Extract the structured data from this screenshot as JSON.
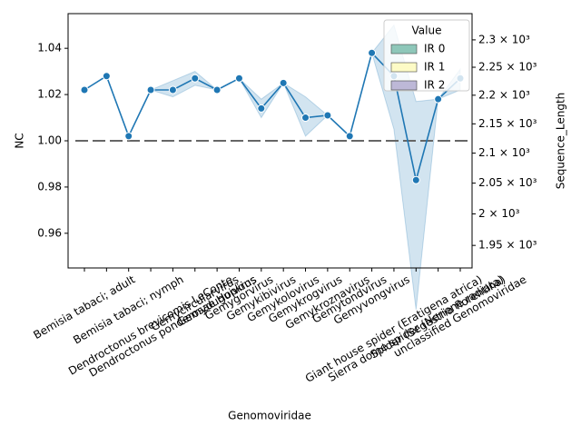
{
  "chart_data": {
    "type": "line",
    "xlabel": "Genomoviridae",
    "ylabel": "NC",
    "y2label": "Sequence_Length",
    "categories": [
      "Bemisia tabaci; adult",
      null,
      "Bemisia tabaci; nymph",
      "Dendroctonus brevicomis LeConte",
      "Dendroctonus ponderosae Hopkins",
      "Gemycircularvirus",
      "Gemyduguivirus",
      "Gemygorvirus",
      "Gemykibivirus",
      "Gemykolovirus",
      "Gemykrogvirus",
      "Gemykroznavirus",
      "Gemytondvirus",
      "Gemyvongvirus",
      "Giant house spider (Eratigena atrica)",
      "Sierra dome spider (Neriene radiata)",
      "Spider (Segestria florentina)",
      "unclassified Genomoviridae"
    ],
    "series": [
      {
        "name": "NC",
        "color": "#1f77b4",
        "values": [
          1.022,
          1.028,
          1.002,
          1.022,
          1.022,
          1.027,
          1.022,
          1.027,
          1.014,
          1.025,
          1.01,
          1.011,
          1.002,
          1.038,
          1.028,
          0.983,
          1.018,
          1.027
        ],
        "lower": [
          1.022,
          1.028,
          1.002,
          1.022,
          1.019,
          1.024,
          1.022,
          1.027,
          1.01,
          1.025,
          1.002,
          1.011,
          1.002,
          1.038,
          1.005,
          0.927,
          1.018,
          1.022
        ],
        "upper": [
          1.022,
          1.028,
          1.002,
          1.022,
          1.026,
          1.03,
          1.022,
          1.027,
          1.018,
          1.025,
          1.019,
          1.011,
          1.002,
          1.038,
          1.05,
          1.017,
          1.018,
          1.031
        ]
      }
    ],
    "band_color": "#1f77b4",
    "hline": 1.0,
    "hline_color": "#666666",
    "ylim": [
      0.945,
      1.055
    ],
    "yticks": [
      {
        "value": 0.96,
        "label": "0.96"
      },
      {
        "value": 0.98,
        "label": "0.98"
      },
      {
        "value": 1.0,
        "label": "1.00"
      },
      {
        "value": 1.02,
        "label": "1.02"
      },
      {
        "value": 1.04,
        "label": "1.04"
      }
    ],
    "y2lim": [
      1915,
      2349
    ],
    "y2scale": "log",
    "y2ticks": [
      {
        "value": 1950,
        "label": "1.95 × 10³"
      },
      {
        "value": 2000,
        "label": "2 × 10³"
      },
      {
        "value": 2050,
        "label": "2.05 × 10³"
      },
      {
        "value": 2100,
        "label": "2.1 × 10³"
      },
      {
        "value": 2150,
        "label": "2.15 × 10³"
      },
      {
        "value": 2200,
        "label": "2.2 × 10³"
      },
      {
        "value": 2250,
        "label": "2.25 × 10³"
      },
      {
        "value": 2300,
        "label": "2.3 × 10³"
      }
    ],
    "legend": {
      "title": "Value",
      "position": "upper right",
      "items": [
        {
          "name": "IR 0",
          "color": "#8ec7b9"
        },
        {
          "name": "IR 1",
          "color": "#fdfbc6"
        },
        {
          "name": "IR 2",
          "color": "#bdb8d7"
        }
      ]
    }
  }
}
